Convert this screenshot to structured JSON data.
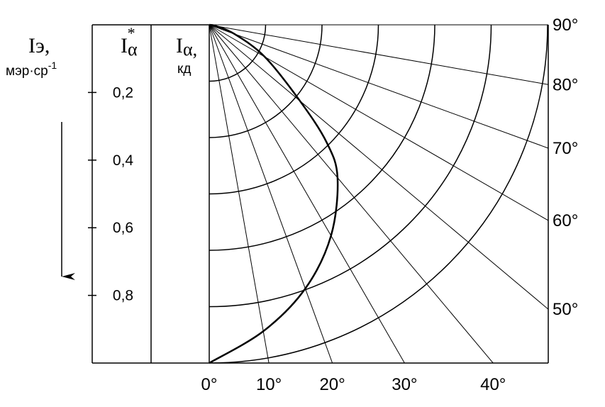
{
  "chart_data": {
    "type": "polar",
    "axis_label_left": {
      "main": "Iэ,",
      "unit": "мэр·ср",
      "unit_exp": "-1"
    },
    "axis_label_middle": {
      "main": "I",
      "sub": "α",
      "sup": "*"
    },
    "axis_label_right": {
      "main": "I",
      "sub": "α,",
      "unit": "кд"
    },
    "rlim": [
      0,
      1
    ],
    "rticks": [
      {
        "value": 0.2,
        "label": "0,2"
      },
      {
        "value": 0.4,
        "label": "0,4"
      },
      {
        "value": 0.6,
        "label": "0,6"
      },
      {
        "value": 0.8,
        "label": "0,8"
      }
    ],
    "xticks": [
      {
        "value": 0,
        "label": "0°"
      },
      {
        "value": 10,
        "label": "10°"
      },
      {
        "value": 20,
        "label": "20°"
      },
      {
        "value": 30,
        "label": "30°"
      },
      {
        "value": 40,
        "label": "40°"
      },
      {
        "value": 50,
        "label": "50°"
      },
      {
        "value": 60,
        "label": "60°"
      },
      {
        "value": 70,
        "label": "70°"
      },
      {
        "value": 80,
        "label": "80°"
      },
      {
        "value": 90,
        "label": "90°"
      }
    ],
    "x": [
      0,
      10,
      20,
      30,
      40,
      45,
      50,
      60,
      70,
      80,
      90
    ],
    "series": [
      {
        "color": "#000000",
        "values": [
          1.0,
          0.92,
          0.83,
          0.72,
          0.59,
          0.49,
          0.35,
          0.19,
          0.08,
          0.02,
          0
        ]
      }
    ]
  }
}
